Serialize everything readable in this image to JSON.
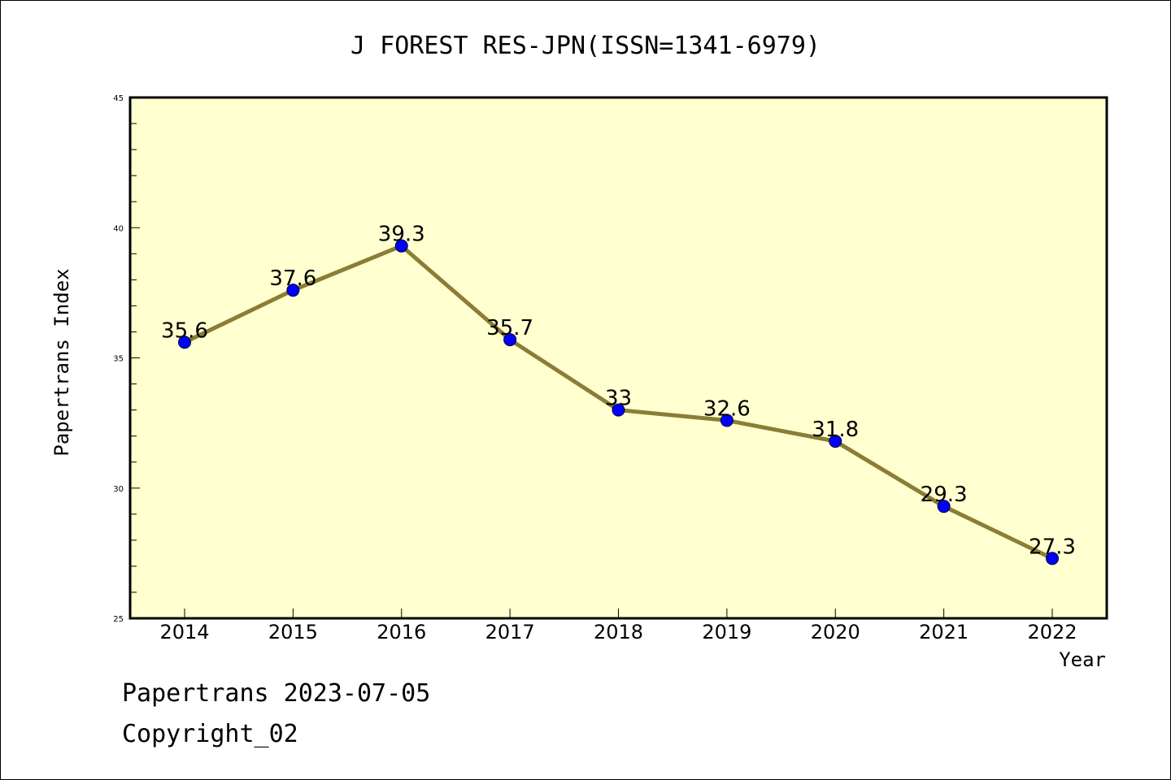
{
  "chart_data": {
    "type": "line",
    "title": "J FOREST RES-JPN(ISSN=1341-6979)",
    "xlabel": "Year",
    "ylabel": "Papertrans Index",
    "categories": [
      "2014",
      "2015",
      "2016",
      "2017",
      "2018",
      "2019",
      "2020",
      "2021",
      "2022"
    ],
    "series": [
      {
        "values": [
          35.6,
          37.6,
          39.3,
          35.7,
          33,
          32.6,
          31.8,
          29.3,
          27.3
        ],
        "data_labels": [
          "35.6",
          "37.6",
          "39.3",
          "35.7",
          "33",
          "32.6",
          "31.8",
          "29.3",
          "27.3"
        ]
      }
    ],
    "ylim": [
      25,
      45
    ],
    "yticks": [
      "25",
      "30",
      "35",
      "40",
      "45"
    ],
    "grid": false,
    "legend": "none",
    "colors": {
      "plot_background": "#ffffd0",
      "line": "#8b7d35",
      "marker": "#0000ff"
    }
  },
  "footer": {
    "line1": "Papertrans 2023-07-05",
    "line2": "Copyright_02"
  }
}
